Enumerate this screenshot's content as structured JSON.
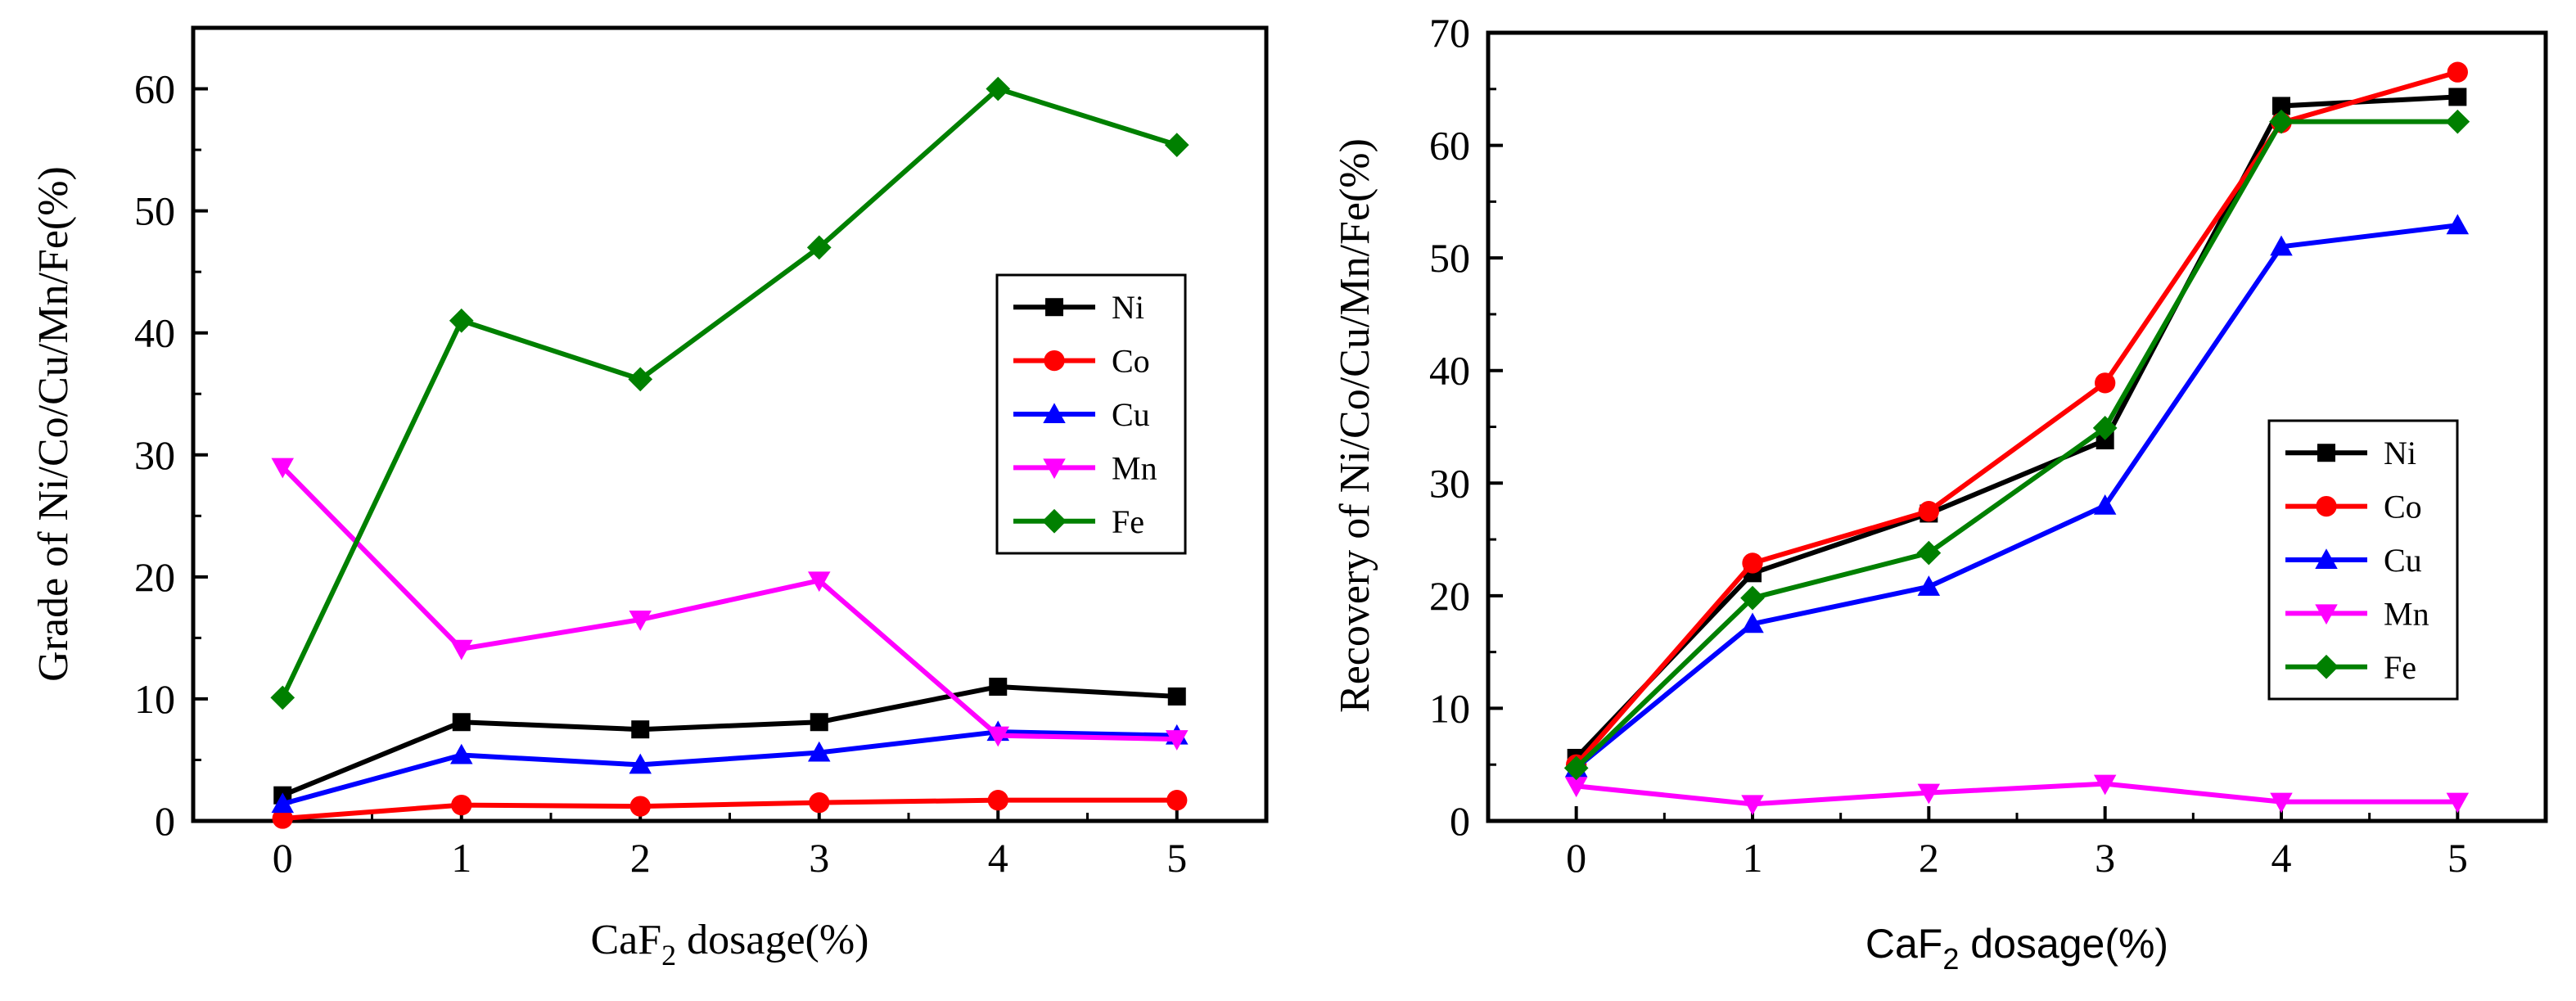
{
  "chart_data": [
    {
      "type": "line",
      "xlabel_main": "CaF",
      "xlabel_sub": "2",
      "xlabel_rest": " dosage(%)",
      "ylabel": "Grade of Ni/Co/Cu/Mn/Fe(%)",
      "xlim": [
        -0.5,
        5.5
      ],
      "ylim": [
        0,
        65
      ],
      "xticks": [
        0,
        1,
        2,
        3,
        4,
        5
      ],
      "yticks": [
        0,
        10,
        20,
        30,
        40,
        50,
        60
      ],
      "x": [
        0,
        1,
        2,
        3,
        4,
        5
      ],
      "legend_position": "middle-right",
      "series": [
        {
          "name": "Ni",
          "color": "#000000",
          "marker": "square",
          "values": [
            2.1,
            8.1,
            7.5,
            8.1,
            11.0,
            10.2
          ]
        },
        {
          "name": "Co",
          "color": "#ff0000",
          "marker": "circle",
          "values": [
            0.2,
            1.3,
            1.2,
            1.5,
            1.7,
            1.7
          ]
        },
        {
          "name": "Cu",
          "color": "#0000ff",
          "marker": "triangle-up",
          "values": [
            1.4,
            5.4,
            4.6,
            5.6,
            7.3,
            7.0
          ]
        },
        {
          "name": "Mn",
          "color": "#ff00ff",
          "marker": "triangle-down",
          "values": [
            29.0,
            14.1,
            16.5,
            19.7,
            7.0,
            6.7
          ]
        },
        {
          "name": "Fe",
          "color": "#008000",
          "marker": "diamond",
          "values": [
            10.1,
            41.0,
            36.2,
            47.0,
            60.0,
            55.4
          ]
        }
      ]
    },
    {
      "type": "line",
      "xlabel_main": "CaF",
      "xlabel_sub": "2",
      "xlabel_rest": " dosage(%)",
      "ylabel": "Recovery of Ni/Co/Cu/Mn/Fe(%)",
      "xlim": [
        -0.5,
        5.5
      ],
      "ylim": [
        0,
        70
      ],
      "xticks": [
        0,
        1,
        2,
        3,
        4,
        5
      ],
      "yticks": [
        0,
        10,
        20,
        30,
        40,
        50,
        60,
        70
      ],
      "x": [
        0,
        1,
        2,
        3,
        4,
        5
      ],
      "legend_position": "middle-right",
      "series": [
        {
          "name": "Ni",
          "color": "#000000",
          "marker": "square",
          "values": [
            5.6,
            22.0,
            27.3,
            33.8,
            63.5,
            64.3
          ]
        },
        {
          "name": "Co",
          "color": "#ff0000",
          "marker": "circle",
          "values": [
            5.0,
            22.9,
            27.5,
            38.9,
            62.0,
            66.5
          ]
        },
        {
          "name": "Cu",
          "color": "#0000ff",
          "marker": "triangle-up",
          "values": [
            4.7,
            17.5,
            20.8,
            28.0,
            51.0,
            52.9
          ]
        },
        {
          "name": "Mn",
          "color": "#ff00ff",
          "marker": "triangle-down",
          "values": [
            3.1,
            1.5,
            2.5,
            3.3,
            1.7,
            1.7
          ]
        },
        {
          "name": "Fe",
          "color": "#008000",
          "marker": "diamond",
          "values": [
            4.7,
            19.8,
            23.8,
            34.9,
            62.1,
            62.1
          ]
        }
      ]
    }
  ]
}
